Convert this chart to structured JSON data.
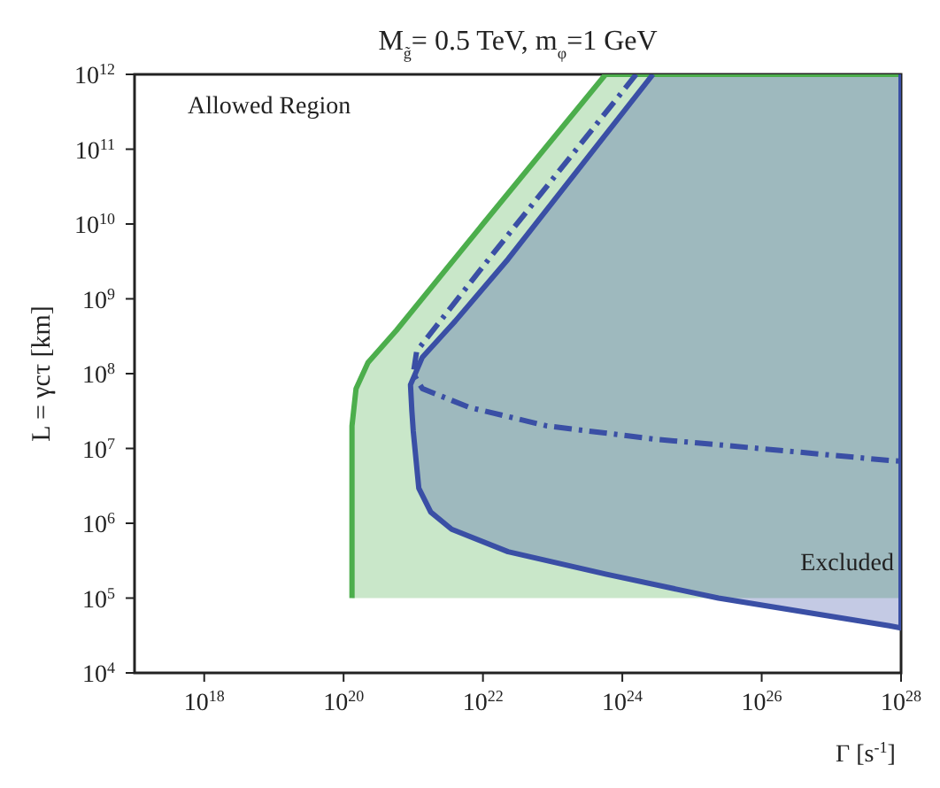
{
  "chart_data": {
    "type": "line",
    "title": "M$_{g̃}$= 0.5 TeV, m$_{φ}$=1 GeV",
    "xlabel": "Γ [s$^{-1}$]",
    "ylabel": "L = γcτ [km]",
    "log": "xy",
    "xlim": [
      1e+17,
      1e+28
    ],
    "ylim": [
      10000.0,
      1000000000000.0
    ],
    "xticks": [
      {
        "value": 1e+18,
        "label": "10$^{18}$"
      },
      {
        "value": 1e+20,
        "label": "10$^{20}$"
      },
      {
        "value": 1e+22,
        "label": "10$^{22}$"
      },
      {
        "value": 1e+24,
        "label": "10$^{24}$"
      },
      {
        "value": 1e+26,
        "label": "10$^{26}$"
      },
      {
        "value": 1e+28,
        "label": "10$^{28}$"
      }
    ],
    "yticks": [
      {
        "value": 10000.0,
        "label": "10$^{4}$"
      },
      {
        "value": 100000.0,
        "label": "10$^{5}$"
      },
      {
        "value": 1000000.0,
        "label": "10$^{6}$"
      },
      {
        "value": 10000000.0,
        "label": "10$^{7}$"
      },
      {
        "value": 100000000.0,
        "label": "10$^{8}$"
      },
      {
        "value": 1000000000.0,
        "label": "10$^{9}$"
      },
      {
        "value": 10000000000.0,
        "label": "10$^{10}$"
      },
      {
        "value": 100000000000.0,
        "label": "10$^{11}$"
      },
      {
        "value": 1000000000000.0,
        "label": "10$^{12}$"
      }
    ],
    "annotations": [
      "Allowed Region",
      "Excluded"
    ],
    "series": [
      {
        "type": "area",
        "color": "#4cae4c",
        "line_style": "solid",
        "x": [
          1.32e+20,
          1.32e+20,
          1.51e+20,
          2.24e+20,
          5.75e+20,
          1e+22,
          5.75e+23,
          1e+28,
          1e+28
        ],
        "values": [
          100000.0,
          20000000.0,
          63100000.0,
          141000000.0,
          380000000.0,
          10000000000.0,
          1000000000000.0,
          1000000000000.0,
          100000.0
        ]
      },
      {
        "type": "area",
        "color": "#3a4fa5",
        "line_style": "solid",
        "x": [
          2.75e+24,
          2e+23,
          2.29e+22,
          3.98e+21,
          1.35e+21,
          9.12e+20,
          9.55e+20,
          1e+21,
          1.2e+21,
          1.78e+21,
          3.55e+21,
          2.29e+22,
          5.75e+23,
          2.4e+25,
          6.76e+27,
          1e+28,
          1e+28
        ],
        "values": [
          1000000000000.0,
          44700000000.0,
          3390000000.0,
          501000000.0,
          166000000.0,
          70800000.0,
          31600000.0,
          17000000.0,
          2950000.0,
          1410000.0,
          832000.0,
          417000.0,
          209000.0,
          100000.0,
          42700.0,
          39800.0,
          1000000000000.0
        ]
      },
      {
        "type": "line",
        "color": "#3a4fa5",
        "line_style": "dashed",
        "x": [
          1.58e+24,
          1.26e+22,
          1.12e+21,
          1e+21,
          1.35e+21,
          6.31e+21,
          8.32e+22,
          3.16e+24,
          2.4e+25,
          6.76e+27,
          1e+28
        ],
        "values": [
          1000000000000.0,
          3550000000.0,
          200000000.0,
          100000000.0,
          63100000.0,
          35500000.0,
          20000000.0,
          13200000.0,
          11200000.0,
          6920000.0,
          6760000.0
        ]
      }
    ]
  }
}
